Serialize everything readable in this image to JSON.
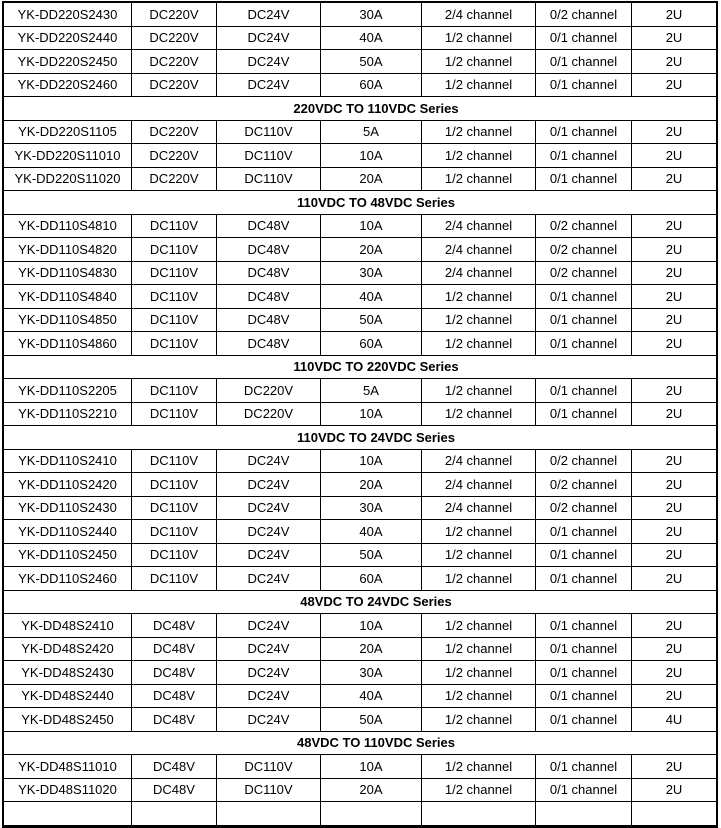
{
  "page": {
    "background": "#ffffff",
    "text_color": "#000000",
    "table_border_color": "#000000"
  },
  "table": {
    "sections": [
      {
        "title": null,
        "rows": [
          [
            "YK-DD220S2430",
            "DC220V",
            "DC24V",
            "30A",
            "2/4 channel",
            "0/2 channel",
            "2U"
          ],
          [
            "YK-DD220S2440",
            "DC220V",
            "DC24V",
            "40A",
            "1/2 channel",
            "0/1 channel",
            "2U"
          ],
          [
            "YK-DD220S2450",
            "DC220V",
            "DC24V",
            "50A",
            "1/2 channel",
            "0/1 channel",
            "2U"
          ],
          [
            "YK-DD220S2460",
            "DC220V",
            "DC24V",
            "60A",
            "1/2 channel",
            "0/1 channel",
            "2U"
          ]
        ]
      },
      {
        "title": "220VDC TO 110VDC Series",
        "rows": [
          [
            "YK-DD220S1105",
            "DC220V",
            "DC110V",
            "5A",
            "1/2 channel",
            "0/1 channel",
            "2U"
          ],
          [
            "YK-DD220S11010",
            "DC220V",
            "DC110V",
            "10A",
            "1/2 channel",
            "0/1 channel",
            "2U"
          ],
          [
            "YK-DD220S11020",
            "DC220V",
            "DC110V",
            "20A",
            "1/2 channel",
            "0/1 channel",
            "2U"
          ]
        ]
      },
      {
        "title": "110VDC TO 48VDC Series",
        "rows": [
          [
            "YK-DD110S4810",
            "DC110V",
            "DC48V",
            "10A",
            "2/4 channel",
            "0/2 channel",
            "2U"
          ],
          [
            "YK-DD110S4820",
            "DC110V",
            "DC48V",
            "20A",
            "2/4 channel",
            "0/2 channel",
            "2U"
          ],
          [
            "YK-DD110S4830",
            "DC110V",
            "DC48V",
            "30A",
            "2/4 channel",
            "0/2 channel",
            "2U"
          ],
          [
            "YK-DD110S4840",
            "DC110V",
            "DC48V",
            "40A",
            "1/2 channel",
            "0/1 channel",
            "2U"
          ],
          [
            "YK-DD110S4850",
            "DC110V",
            "DC48V",
            "50A",
            "1/2 channel",
            "0/1 channel",
            "2U"
          ],
          [
            "YK-DD110S4860",
            "DC110V",
            "DC48V",
            "60A",
            "1/2 channel",
            "0/1 channel",
            "2U"
          ]
        ]
      },
      {
        "title": "110VDC TO 220VDC Series",
        "rows": [
          [
            "YK-DD110S2205",
            "DC110V",
            "DC220V",
            "5A",
            "1/2 channel",
            "0/1 channel",
            "2U"
          ],
          [
            "YK-DD110S2210",
            "DC110V",
            "DC220V",
            "10A",
            "1/2 channel",
            "0/1 channel",
            "2U"
          ]
        ]
      },
      {
        "title": "110VDC TO 24VDC Series",
        "rows": [
          [
            "YK-DD110S2410",
            "DC110V",
            "DC24V",
            "10A",
            "2/4 channel",
            "0/2 channel",
            "2U"
          ],
          [
            "YK-DD110S2420",
            "DC110V",
            "DC24V",
            "20A",
            "2/4 channel",
            "0/2 channel",
            "2U"
          ],
          [
            "YK-DD110S2430",
            "DC110V",
            "DC24V",
            "30A",
            "2/4 channel",
            "0/2 channel",
            "2U"
          ],
          [
            "YK-DD110S2440",
            "DC110V",
            "DC24V",
            "40A",
            "1/2 channel",
            "0/1 channel",
            "2U"
          ],
          [
            "YK-DD110S2450",
            "DC110V",
            "DC24V",
            "50A",
            "1/2 channel",
            "0/1 channel",
            "2U"
          ],
          [
            "YK-DD110S2460",
            "DC110V",
            "DC24V",
            "60A",
            "1/2 channel",
            "0/1 channel",
            "2U"
          ]
        ]
      },
      {
        "title": "48VDC TO 24VDC Series",
        "rows": [
          [
            "YK-DD48S2410",
            "DC48V",
            "DC24V",
            "10A",
            "1/2 channel",
            "0/1 channel",
            "2U"
          ],
          [
            "YK-DD48S2420",
            "DC48V",
            "DC24V",
            "20A",
            "1/2 channel",
            "0/1 channel",
            "2U"
          ],
          [
            "YK-DD48S2430",
            "DC48V",
            "DC24V",
            "30A",
            "1/2 channel",
            "0/1 channel",
            "2U"
          ],
          [
            "YK-DD48S2440",
            "DC48V",
            "DC24V",
            "40A",
            "1/2 channel",
            "0/1 channel",
            "2U"
          ],
          [
            "YK-DD48S2450",
            "DC48V",
            "DC24V",
            "50A",
            "1/2 channel",
            "0/1 channel",
            "4U"
          ]
        ]
      },
      {
        "title": "48VDC TO 110VDC Series",
        "rows": [
          [
            "YK-DD48S11010",
            "DC48V",
            "DC110V",
            "10A",
            "1/2 channel",
            "0/1 channel",
            "2U"
          ],
          [
            "YK-DD48S11020",
            "DC48V",
            "DC110V",
            "20A",
            "1/2 channel",
            "0/1 channel",
            "2U"
          ]
        ]
      }
    ]
  }
}
